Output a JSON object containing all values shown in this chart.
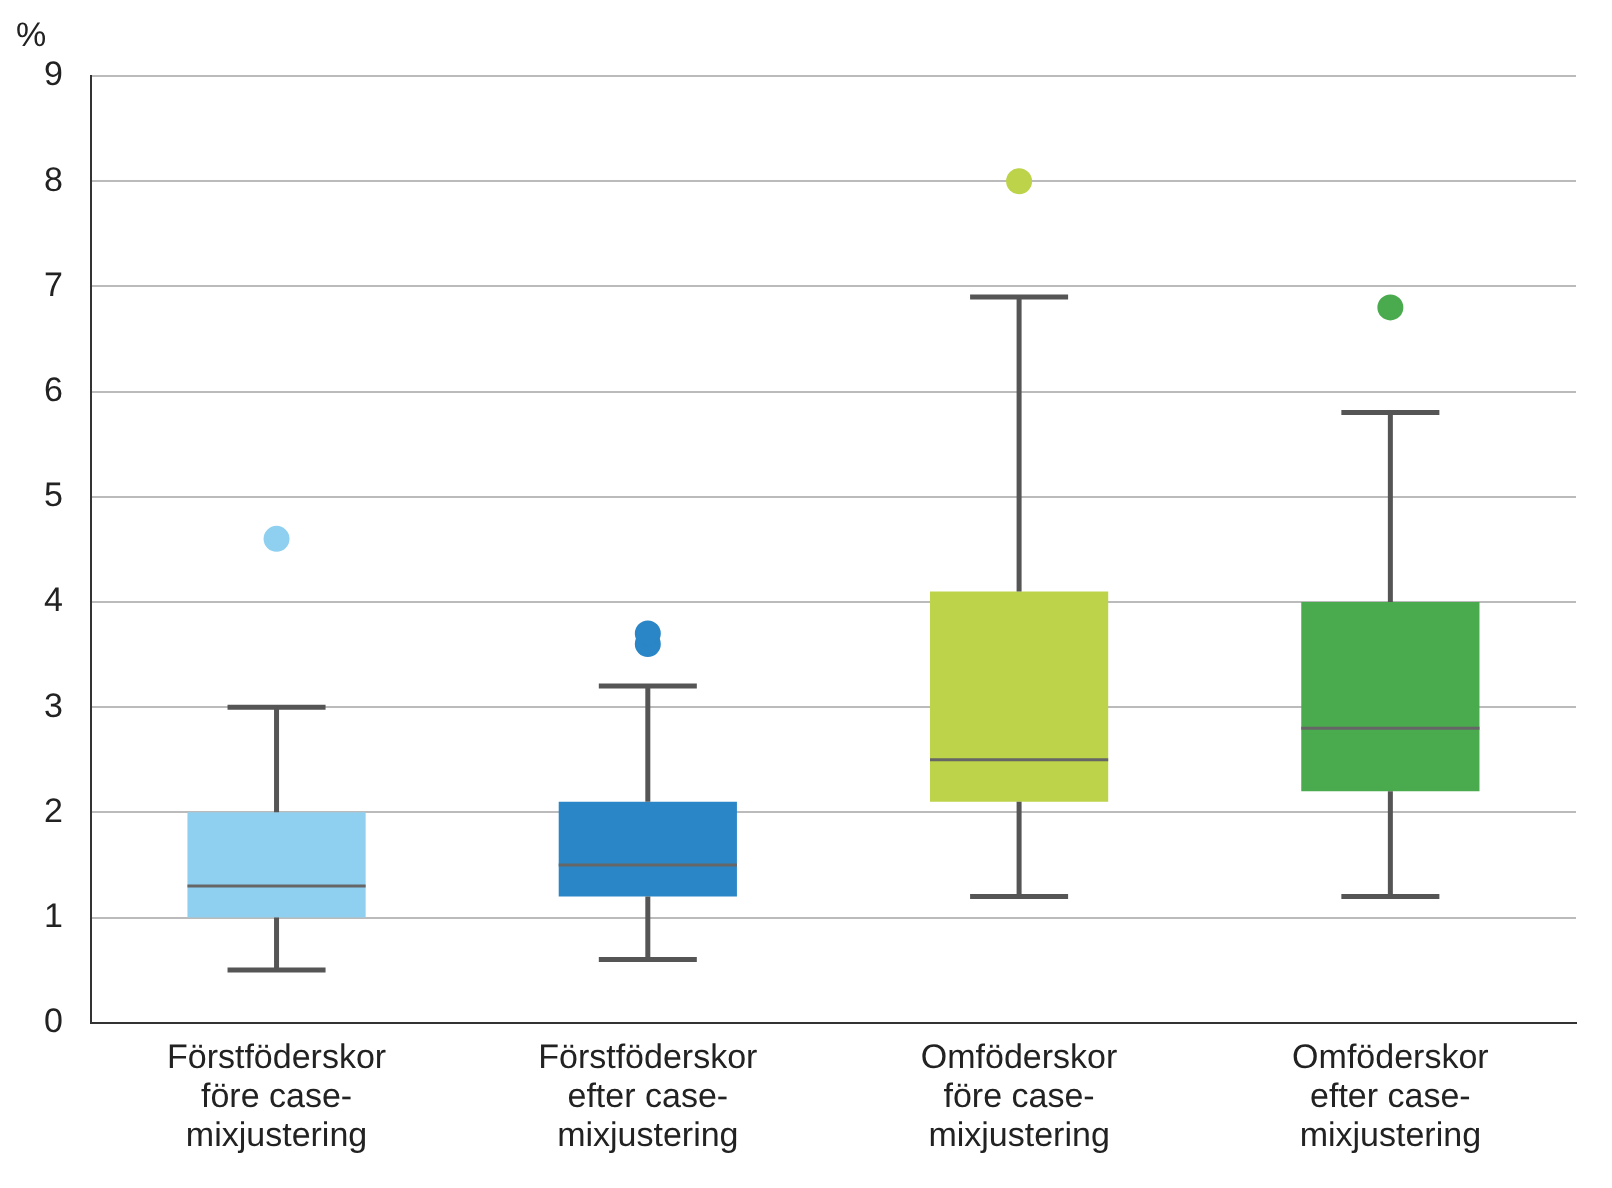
{
  "chart_data": {
    "type": "box",
    "ylabel": "%",
    "categories": [
      "Förstföderskor före case-mixjustering",
      "Förstföderskor efter case-mixjustering",
      "Omföderskor före case-mixjustering",
      "Omföderskor efter case-mixjustering"
    ],
    "colors": [
      "#8fd0f0",
      "#2a86c6",
      "#bcd34a",
      "#4aaa4e"
    ],
    "boxes": [
      {
        "low": 0.5,
        "q1": 1.0,
        "median": 1.3,
        "q3": 2.0,
        "high": 3.0,
        "outliers": [
          4.6
        ]
      },
      {
        "low": 0.6,
        "q1": 1.2,
        "median": 1.5,
        "q3": 2.1,
        "high": 3.2,
        "outliers": [
          3.6,
          3.7
        ]
      },
      {
        "low": 1.2,
        "q1": 2.1,
        "median": 2.5,
        "q3": 4.1,
        "high": 6.9,
        "outliers": [
          8.0
        ]
      },
      {
        "low": 1.2,
        "q1": 2.2,
        "median": 2.8,
        "q3": 4.0,
        "high": 5.8,
        "outliers": [
          6.8
        ]
      }
    ],
    "ylim": [
      0,
      9
    ],
    "yticks": [
      0,
      1,
      2,
      3,
      4,
      5,
      6,
      7,
      8,
      9
    ],
    "grid": "y",
    "legend": false
  }
}
